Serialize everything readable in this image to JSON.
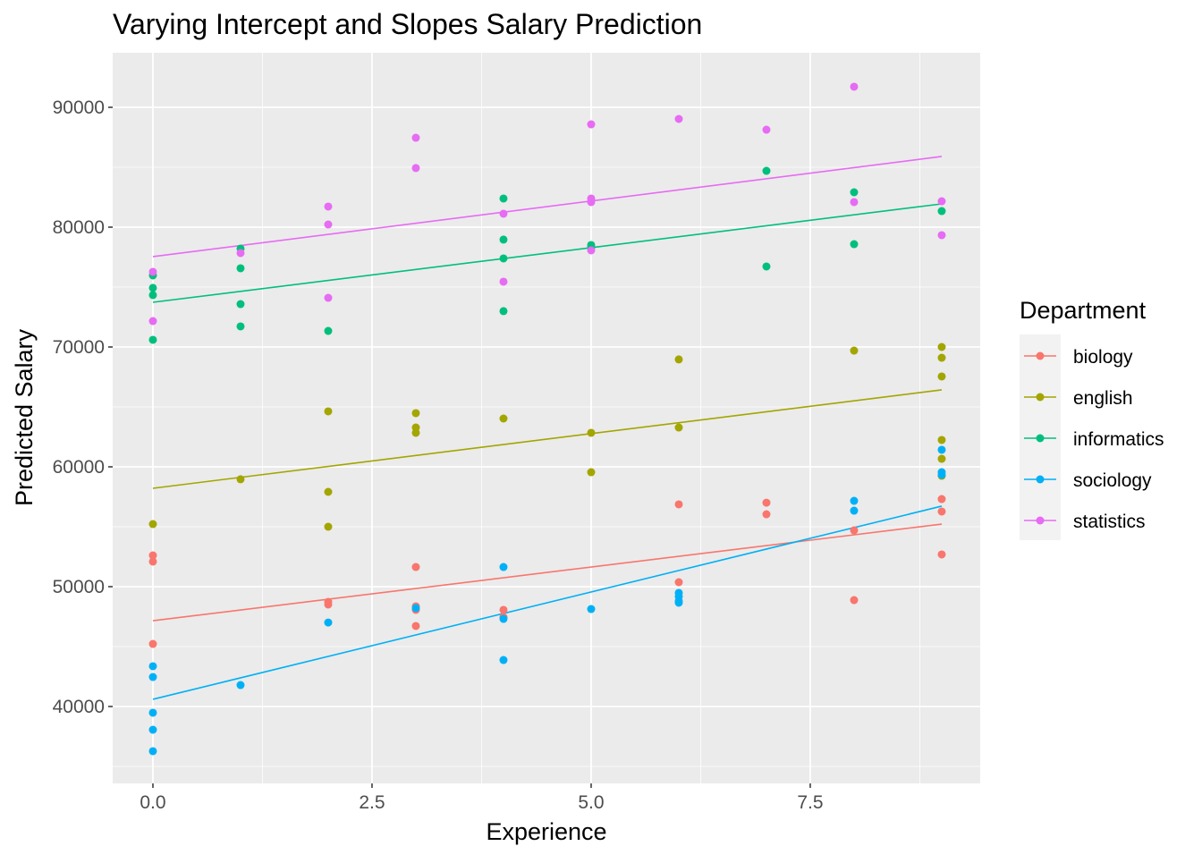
{
  "chart_data": {
    "type": "scatter",
    "title": "Varying Intercept and Slopes Salary Prediction",
    "xlabel": "Experience",
    "ylabel": "Predicted Salary",
    "xlim": [
      -0.459,
      9.439
    ],
    "ylim": [
      33582,
      94552
    ],
    "x_ticks": [
      0,
      2.5,
      5,
      7.5
    ],
    "x_tick_labels": [
      "0.0",
      "2.5",
      "5.0",
      "7.5"
    ],
    "y_ticks": [
      40000,
      50000,
      60000,
      70000,
      80000,
      90000
    ],
    "y_tick_labels": [
      "40000",
      "50000",
      "60000",
      "70000",
      "80000",
      "90000"
    ],
    "grid": true,
    "legend": {
      "title": "Department",
      "placement": "right"
    },
    "series": [
      {
        "name": "biology",
        "color": "#F8766D",
        "line": [
          [
            0,
            47160
          ],
          [
            9,
            55220
          ]
        ],
        "points": [
          [
            0,
            52610
          ],
          [
            0,
            52090
          ],
          [
            0,
            45220
          ],
          [
            2,
            48730
          ],
          [
            2,
            48510
          ],
          [
            3,
            51640
          ],
          [
            3,
            48360
          ],
          [
            3,
            48060
          ],
          [
            3,
            46720
          ],
          [
            4,
            48060
          ],
          [
            4,
            47460
          ],
          [
            6,
            56870
          ],
          [
            6,
            50370
          ],
          [
            7,
            57010
          ],
          [
            7,
            56040
          ],
          [
            8,
            54700
          ],
          [
            8,
            48880
          ],
          [
            9,
            57310
          ],
          [
            9,
            56270
          ],
          [
            9,
            52690
          ]
        ]
      },
      {
        "name": "english",
        "color": "#A3A500",
        "line": [
          [
            0,
            58210
          ],
          [
            9,
            66420
          ]
        ],
        "points": [
          [
            0,
            55220
          ],
          [
            1,
            58960
          ],
          [
            2,
            64630
          ],
          [
            2,
            57910
          ],
          [
            2,
            55000
          ],
          [
            3,
            64480
          ],
          [
            3,
            63280
          ],
          [
            3,
            62840
          ],
          [
            4,
            64030
          ],
          [
            5,
            62840
          ],
          [
            5,
            59550
          ],
          [
            6,
            68960
          ],
          [
            6,
            63280
          ],
          [
            8,
            69700
          ],
          [
            9,
            70000
          ],
          [
            9,
            69100
          ],
          [
            9,
            67540
          ],
          [
            9,
            62240
          ],
          [
            9,
            60670
          ],
          [
            9,
            59250
          ]
        ]
      },
      {
        "name": "informatics",
        "color": "#00BF7D",
        "line": [
          [
            0,
            73730
          ],
          [
            9,
            81940
          ]
        ],
        "points": [
          [
            0,
            75970
          ],
          [
            0,
            74930
          ],
          [
            0,
            74330
          ],
          [
            0,
            70600
          ],
          [
            1,
            78210
          ],
          [
            1,
            76570
          ],
          [
            1,
            73580
          ],
          [
            1,
            71720
          ],
          [
            2,
            71340
          ],
          [
            4,
            82390
          ],
          [
            4,
            78960
          ],
          [
            4,
            77390
          ],
          [
            4,
            72990
          ],
          [
            5,
            78510
          ],
          [
            5,
            78280
          ],
          [
            7,
            84700
          ],
          [
            7,
            76720
          ],
          [
            8,
            82910
          ],
          [
            8,
            78580
          ],
          [
            9,
            81340
          ]
        ]
      },
      {
        "name": "sociology",
        "color": "#00B0F6",
        "line": [
          [
            0,
            40600
          ],
          [
            9,
            56720
          ]
        ],
        "points": [
          [
            0,
            43360
          ],
          [
            0,
            42460
          ],
          [
            0,
            39480
          ],
          [
            0,
            38060
          ],
          [
            0,
            36270
          ],
          [
            1,
            41790
          ],
          [
            2,
            47010
          ],
          [
            3,
            48210
          ],
          [
            4,
            51640
          ],
          [
            4,
            47310
          ],
          [
            4,
            43880
          ],
          [
            5,
            48130
          ],
          [
            6,
            49480
          ],
          [
            6,
            49180
          ],
          [
            6,
            48810
          ],
          [
            6,
            48660
          ],
          [
            8,
            57160
          ],
          [
            8,
            56340
          ],
          [
            9,
            61420
          ],
          [
            9,
            59550
          ],
          [
            9,
            59330
          ]
        ]
      },
      {
        "name": "statistics",
        "color": "#E76BF3",
        "line": [
          [
            0,
            77540
          ],
          [
            9,
            85900
          ]
        ],
        "points": [
          [
            0,
            76270
          ],
          [
            0,
            72160
          ],
          [
            1,
            77840
          ],
          [
            2,
            81720
          ],
          [
            2,
            80220
          ],
          [
            2,
            74100
          ],
          [
            3,
            87460
          ],
          [
            3,
            84930
          ],
          [
            4,
            81120
          ],
          [
            4,
            75450
          ],
          [
            5,
            88580
          ],
          [
            5,
            82390
          ],
          [
            5,
            82090
          ],
          [
            5,
            78060
          ],
          [
            6,
            89030
          ],
          [
            7,
            88130
          ],
          [
            8,
            91720
          ],
          [
            8,
            82090
          ],
          [
            9,
            82160
          ],
          [
            9,
            79330
          ]
        ]
      }
    ]
  }
}
